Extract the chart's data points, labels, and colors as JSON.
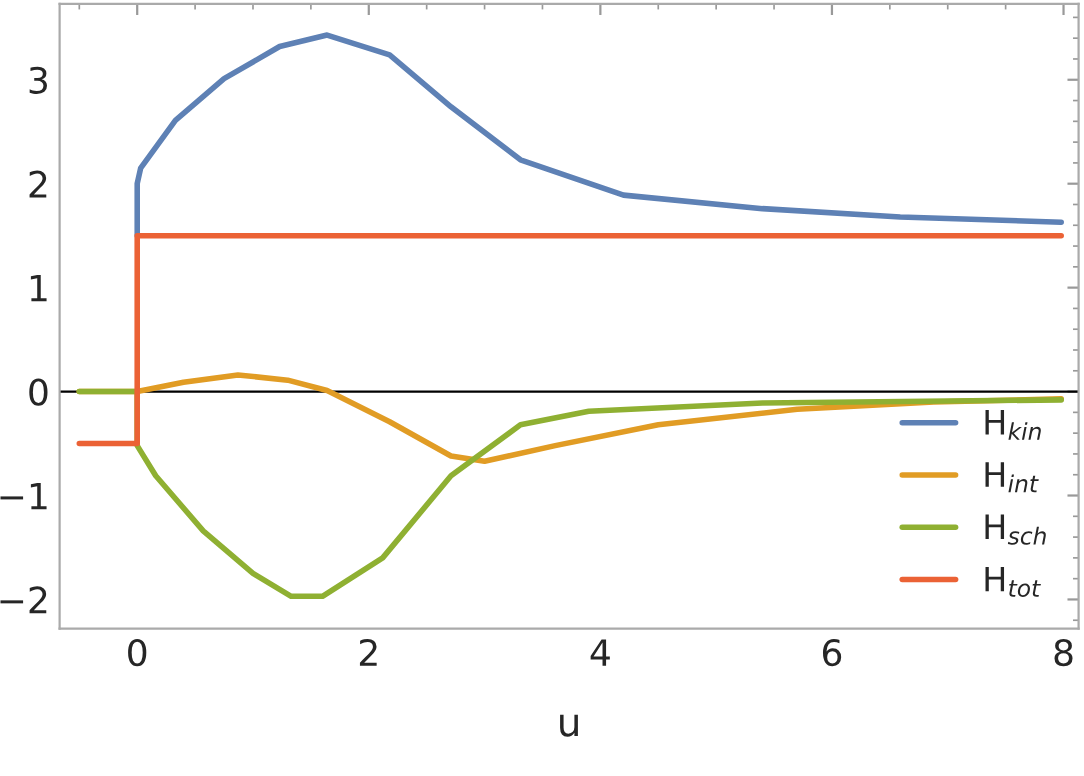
{
  "chart_data": {
    "type": "line",
    "xlabel": "u",
    "xlim": [
      -0.67,
      8.13
    ],
    "ylim": [
      -2.28,
      3.73
    ],
    "xticks": [
      0,
      2,
      4,
      6,
      8
    ],
    "yticks": [
      -2,
      -1,
      0,
      1,
      2,
      3
    ],
    "grid": false,
    "legend": "right",
    "marker": "none",
    "line_style": "solid",
    "ref_lines": [
      {
        "axis": "y",
        "value": 0,
        "color": "#000000"
      }
    ],
    "series": [
      {
        "name": "H$_{kin}$",
        "color": "#5e81b5",
        "x": [
          0,
          0,
          0.03,
          0.33,
          0.75,
          1.23,
          1.64,
          2.18,
          2.71,
          3.31,
          4.2,
          5.4,
          6.59,
          7.98
        ],
        "values": [
          1.5,
          2.0,
          2.15,
          2.61,
          3.01,
          3.32,
          3.43,
          3.24,
          2.74,
          2.23,
          1.89,
          1.76,
          1.68,
          1.63
        ]
      },
      {
        "name": "H$_{int}$",
        "color": "#e19c24",
        "x": [
          -0.5,
          0,
          0.4,
          0.87,
          1.3,
          1.64,
          2.18,
          2.71,
          3.0,
          3.61,
          4.5,
          5.7,
          6.88,
          7.98
        ],
        "values": [
          0,
          0,
          0.09,
          0.16,
          0.11,
          0.01,
          -0.29,
          -0.62,
          -0.67,
          -0.52,
          -0.32,
          -0.17,
          -0.1,
          -0.07
        ]
      },
      {
        "name": "H$_{sch}$",
        "color": "#8fb032",
        "x": [
          -0.5,
          0,
          0,
          0.16,
          0.57,
          1.0,
          1.33,
          1.6,
          2.12,
          2.71,
          3.31,
          3.9,
          5.4,
          7.98
        ],
        "values": [
          0,
          0,
          -0.52,
          -0.81,
          -1.34,
          -1.75,
          -1.97,
          -1.97,
          -1.6,
          -0.81,
          -0.32,
          -0.19,
          -0.11,
          -0.08
        ]
      },
      {
        "name": "H$_{tot}$",
        "color": "#eb6235",
        "x": [
          -0.5,
          0,
          0,
          7.98
        ],
        "values": [
          -0.5,
          -0.5,
          1.5,
          1.5
        ]
      }
    ]
  }
}
